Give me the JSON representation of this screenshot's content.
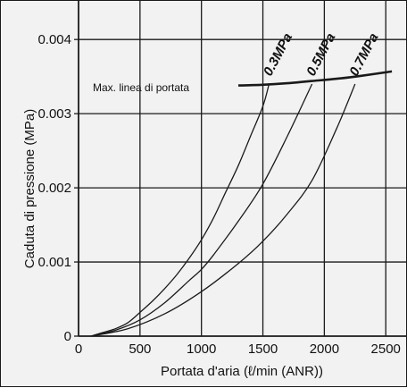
{
  "chart_data": {
    "type": "line",
    "xlabel": "Portata d'aria (ℓ/min (ANR))",
    "ylabel": "Caduta di pressione (MPa)",
    "xlim": [
      0,
      2600
    ],
    "ylim": [
      0,
      0.0044
    ],
    "x_ticks": [
      0,
      500,
      1000,
      1500,
      2000,
      2500
    ],
    "x_tick_labels": [
      "0",
      "500",
      "1000",
      "1500",
      "2000",
      "2500"
    ],
    "y_ticks": [
      0,
      0.001,
      0.002,
      0.003,
      0.004
    ],
    "y_tick_labels": [
      "0",
      "0.001",
      "0.002",
      "0.003",
      "0.004"
    ],
    "grid": true,
    "series": [
      {
        "name": "0.3MPa",
        "x": [
          100,
          200,
          300,
          400,
          500,
          600,
          700,
          800,
          900,
          1000,
          1100,
          1200,
          1300,
          1400,
          1500,
          1550
        ],
        "y": [
          0,
          5e-05,
          0.0001,
          0.00018,
          0.00032,
          0.00047,
          0.00064,
          0.00083,
          0.00105,
          0.0013,
          0.0016,
          0.00195,
          0.0023,
          0.0027,
          0.0031,
          0.0034
        ]
      },
      {
        "name": "0.5MPa",
        "x": [
          100,
          300,
          500,
          700,
          900,
          1000,
          1100,
          1300,
          1500,
          1700,
          1900
        ],
        "y": [
          0,
          8e-05,
          0.00022,
          0.00045,
          0.00075,
          0.0009,
          0.0011,
          0.00155,
          0.00205,
          0.0027,
          0.0034
        ]
      },
      {
        "name": "0.7MPa",
        "x": [
          100,
          400,
          700,
          1000,
          1300,
          1500,
          1700,
          1900,
          2100,
          2250
        ],
        "y": [
          0,
          0.0001,
          0.0003,
          0.0006,
          0.00098,
          0.00128,
          0.00165,
          0.0021,
          0.0028,
          0.0034
        ]
      }
    ],
    "max_flow_line": {
      "label": "Max. linea di portata",
      "x": [
        1300,
        1500,
        1700,
        1900,
        2100,
        2300,
        2550
      ],
      "y": [
        0.00338,
        0.00339,
        0.00341,
        0.00344,
        0.00347,
        0.00351,
        0.00357
      ]
    },
    "colors": {
      "background": "#f2f2f2",
      "grid": "#1a1a1a",
      "curves": "#1a1a1a"
    }
  }
}
